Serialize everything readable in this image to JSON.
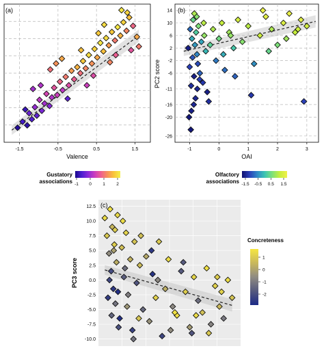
{
  "panels": [
    {
      "id": "a",
      "panel_label": "(a)",
      "xlabel": "Valence",
      "ylabel": "",
      "xlim": [
        -1.9,
        1.9
      ],
      "ylim": [
        -1.4,
        4.3
      ],
      "xticks": [
        -1.5,
        -0.5,
        0.5,
        1.5
      ],
      "xtick_labels": [
        "-1.5",
        "-0.5",
        "0.5",
        "1.5"
      ],
      "trend": {
        "x1": -1.7,
        "y1": -0.9,
        "x2": 1.6,
        "y2": 3.0
      }
    },
    {
      "id": "b",
      "panel_label": "(b)",
      "xlabel": "OAI",
      "ylabel": "PC2 score",
      "xlim": [
        -1.5,
        3.4
      ],
      "ylim": [
        -28,
        16
      ],
      "xticks": [
        -1,
        0,
        1,
        2,
        3
      ],
      "xtick_labels": [
        "-1",
        "0",
        "1",
        "2",
        "3"
      ],
      "yticks": [
        14,
        10,
        6,
        2,
        -2,
        -6,
        -11,
        -16,
        -20,
        -26
      ],
      "ytick_labels": [
        "14",
        "10",
        "6",
        "2",
        "-2",
        "-6",
        "-11",
        "-16",
        "-20",
        "-26"
      ],
      "trend": {
        "x1": -1.2,
        "y1": 1.0,
        "x2": 3.3,
        "y2": 10.5
      }
    },
    {
      "id": "c",
      "panel_label": "(c)",
      "xlabel": "",
      "ylabel": "PC3 score",
      "xlim": [
        -3.1,
        3.6
      ],
      "ylim": [
        -11.2,
        13.6
      ],
      "xticks": [],
      "xtick_labels": [],
      "yticks": [
        12.5,
        10.0,
        7.5,
        5.0,
        2.5,
        0.0,
        -2.5,
        -5.0,
        -7.5,
        -10.0
      ],
      "ytick_labels": [
        "12.5",
        "10.0",
        "7.5",
        "5.0",
        "2.5",
        "0.0",
        "-2.5",
        "-5.0",
        "-7.5",
        "-10.0"
      ],
      "trend": {
        "x1": -2.8,
        "y1": 1.7,
        "x2": 3.2,
        "y2": -4.3
      }
    }
  ],
  "legends": {
    "gustatory": {
      "title_line1": "Gustatory",
      "title_line2": "associations",
      "tick_labels": [
        "-1",
        "0",
        "1",
        "2"
      ],
      "colors": [
        "#1a0a8c",
        "#4b1ed0",
        "#8a2ad8",
        "#c93cbf",
        "#ee5f8f",
        "#f7905a",
        "#f9c53a",
        "#f4f04a"
      ]
    },
    "olfactory": {
      "title_line1": "Olfactory",
      "title_line2": "associations",
      "tick_labels": [
        "-1.5",
        "-0.5",
        "0.5",
        "1.5"
      ],
      "colors": [
        "#101070",
        "#2a3fb8",
        "#2f86c6",
        "#3bc3b4",
        "#7de07a",
        "#c6ee3d",
        "#f0f04a"
      ]
    },
    "concreteness": {
      "title": "Concreteness",
      "tick_labels": [
        "1",
        "0",
        "-1",
        "-2"
      ],
      "colors": [
        "#f5e642",
        "#c9b85c",
        "#8f8b82",
        "#55597e",
        "#1c2a86"
      ]
    }
  },
  "chart_data": [
    {
      "type": "scatter",
      "panel": "a",
      "xlabel": "Valence",
      "color_variable": "Gustatory associations",
      "x": [
        -1.55,
        -1.42,
        -1.3,
        -1.25,
        -1.18,
        -1.1,
        -1.05,
        -0.98,
        -0.92,
        -0.85,
        -0.8,
        -0.72,
        -0.66,
        -0.6,
        -0.52,
        -0.45,
        -0.38,
        -0.3,
        -0.22,
        -0.15,
        -0.08,
        0.0,
        0.08,
        0.15,
        0.22,
        0.3,
        0.38,
        0.45,
        0.52,
        0.6,
        0.68,
        0.75,
        0.82,
        0.9,
        0.98,
        1.05,
        1.12,
        1.2,
        1.28,
        1.35,
        1.45,
        1.55,
        -1.35,
        -0.95,
        -0.55,
        -0.25,
        0.1,
        0.42,
        0.7,
        1.0,
        1.3,
        1.6,
        -0.7,
        0.25,
        0.85,
        1.15,
        -1.15,
        -0.4,
        0.55,
        1.4
      ],
      "y": [
        -0.8,
        -0.55,
        -0.7,
        -0.2,
        -0.45,
        0.05,
        -0.3,
        0.35,
        -0.1,
        0.2,
        0.6,
        0.1,
        0.45,
        0.85,
        0.55,
        1.1,
        0.75,
        1.3,
        0.95,
        1.55,
        1.2,
        1.7,
        1.45,
        1.95,
        1.65,
        2.2,
        1.85,
        2.45,
        2.1,
        2.7,
        2.35,
        2.9,
        2.6,
        3.15,
        2.8,
        3.35,
        3.0,
        3.55,
        3.2,
        3.75,
        3.4,
        2.95,
        -0.05,
        0.95,
        1.85,
        0.4,
        2.4,
        1.35,
        3.45,
        2.2,
        3.95,
        2.55,
        1.6,
        0.95,
        1.9,
        4.05,
        0.8,
        2.05,
        3.1,
        2.4
      ],
      "values": [
        -0.9,
        -0.6,
        -0.8,
        -0.3,
        -0.5,
        0.0,
        -0.4,
        0.3,
        -0.2,
        0.1,
        0.5,
        -0.1,
        0.2,
        0.7,
        0.4,
        0.9,
        0.3,
        1.1,
        0.6,
        1.4,
        0.8,
        1.6,
        1.0,
        1.8,
        1.2,
        2.0,
        1.3,
        1.9,
        1.5,
        2.1,
        1.7,
        2.0,
        1.4,
        1.8,
        1.1,
        2.1,
        1.6,
        1.9,
        1.2,
        1.7,
        0.9,
        1.5,
        -0.7,
        0.2,
        1.3,
        -0.4,
        1.7,
        0.6,
        2.0,
        0.8,
        1.9,
        1.1,
        1.0,
        0.4,
        1.2,
        2.1,
        0.1,
        1.5,
        1.8,
        0.7
      ]
    },
    {
      "type": "scatter",
      "panel": "b",
      "xlabel": "OAI",
      "ylabel": "PC2 score",
      "color_variable": "Olfactory associations",
      "x": [
        -1.05,
        -1.0,
        -0.98,
        -0.95,
        -0.92,
        -0.9,
        -0.88,
        -0.85,
        -0.82,
        -0.8,
        -0.78,
        -0.75,
        -0.72,
        -0.7,
        -0.65,
        -0.6,
        -0.55,
        -0.5,
        -0.45,
        -0.4,
        -0.3,
        -0.2,
        -0.1,
        0.0,
        0.1,
        0.2,
        0.35,
        0.5,
        0.65,
        0.8,
        1.0,
        1.2,
        1.4,
        1.6,
        1.8,
        2.0,
        2.2,
        2.4,
        2.6,
        2.8,
        3.0,
        -1.02,
        -0.96,
        -0.86,
        -0.76,
        -0.66,
        -0.52,
        -0.35,
        0.15,
        0.55,
        1.1,
        1.7,
        2.3,
        2.9,
        -0.94,
        -0.84,
        -0.74,
        0.4,
        1.5,
        2.7
      ],
      "y": [
        2.0,
        -4.0,
        8.0,
        -10.0,
        5.0,
        -1.0,
        11.0,
        -7.0,
        3.0,
        -14.0,
        7.0,
        0.0,
        -3.0,
        9.0,
        -6.0,
        4.0,
        -9.0,
        6.0,
        1.0,
        -12.0,
        3.0,
        8.0,
        -2.0,
        5.0,
        10.0,
        -5.0,
        7.0,
        2.0,
        11.0,
        4.0,
        9.0,
        -3.0,
        6.0,
        12.0,
        8.0,
        3.0,
        10.0,
        13.0,
        7.0,
        11.0,
        9.0,
        -20.0,
        -24.0,
        -16.0,
        12.0,
        -8.0,
        10.0,
        -15.0,
        0.0,
        -7.0,
        -13.0,
        1.0,
        5.0,
        -15.0,
        -18.0,
        13.0,
        -11.0,
        6.0,
        14.0,
        8.0
      ],
      "values": [
        -1.6,
        -1.2,
        -0.8,
        -1.4,
        -0.2,
        -1.0,
        0.4,
        -1.6,
        -0.4,
        -1.5,
        0.2,
        -0.6,
        -1.1,
        0.6,
        -0.9,
        -0.3,
        -1.3,
        0.8,
        -0.1,
        -1.6,
        0.3,
        1.0,
        -0.7,
        0.5,
        1.2,
        -0.8,
        0.9,
        0.1,
        1.4,
        0.7,
        1.1,
        -0.5,
        1.3,
        1.6,
        1.0,
        0.6,
        1.5,
        1.7,
        1.2,
        1.6,
        1.4,
        -1.7,
        -1.7,
        -1.5,
        0.7,
        -1.2,
        1.1,
        -1.4,
        -0.2,
        -0.9,
        -1.3,
        0.4,
        0.9,
        -1.2,
        -1.6,
        1.0,
        -1.5,
        0.8,
        1.7,
        1.3
      ]
    },
    {
      "type": "scatter",
      "panel": "c",
      "ylabel": "PC3 score",
      "color_variable": "Concreteness",
      "x": [
        -2.8,
        -2.7,
        -2.6,
        -2.55,
        -2.5,
        -2.45,
        -2.4,
        -2.35,
        -2.3,
        -2.25,
        -2.2,
        -2.1,
        -2.0,
        -1.9,
        -1.8,
        -1.7,
        -1.6,
        -1.5,
        -1.4,
        -1.3,
        -1.15,
        -1.0,
        -0.85,
        -0.7,
        -0.55,
        -0.4,
        -0.25,
        -0.1,
        0.05,
        0.2,
        0.4,
        0.6,
        0.8,
        1.0,
        1.2,
        1.4,
        1.6,
        1.8,
        2.0,
        2.2,
        2.4,
        2.6,
        2.8,
        3.0,
        3.2,
        -2.65,
        -2.48,
        -2.32,
        -2.15,
        -1.95,
        -1.75,
        -1.45,
        -1.1,
        -0.6,
        0.3,
        0.9,
        1.5,
        2.1,
        2.7,
        -2.58,
        -2.38,
        -2.18,
        -1.85,
        -1.2,
        -0.3,
        0.5,
        1.3,
        2.5
      ],
      "y": [
        10.5,
        7.5,
        4.5,
        12.0,
        1.5,
        9.0,
        -1.5,
        6.0,
        -4.0,
        3.0,
        11.0,
        -6.5,
        5.5,
        0.5,
        8.0,
        -2.5,
        3.5,
        -8.5,
        6.5,
        -0.5,
        2.5,
        -5.0,
        4.0,
        -7.0,
        1.0,
        -3.0,
        6.5,
        -9.5,
        -1.5,
        3.5,
        -4.5,
        -6.0,
        1.5,
        -2.0,
        -8.0,
        0.5,
        -3.5,
        -5.5,
        2.0,
        -7.5,
        -1.0,
        -4.5,
        -6.5,
        0.0,
        -3.0,
        -3.0,
        -6.0,
        8.5,
        -8.0,
        10.0,
        -4.5,
        -10.0,
        7.5,
        5.0,
        -8.5,
        3.0,
        -6.0,
        -9.0,
        -2.0,
        0.0,
        5.0,
        -2.0,
        2.0,
        -6.5,
        0.0,
        -5.5,
        -9.0,
        0.5
      ],
      "values": [
        1.2,
        0.8,
        -0.5,
        1.3,
        -1.8,
        0.4,
        -2.2,
        0.9,
        -1.0,
        0.2,
        1.1,
        -2.4,
        0.6,
        -1.4,
        1.0,
        -0.8,
        0.3,
        -2.0,
        0.7,
        -1.6,
        0.5,
        -1.2,
        0.1,
        -0.4,
        -2.3,
        1.0,
        0.8,
        -1.9,
        0.2,
        1.2,
        -0.6,
        1.3,
        -1.5,
        0.9,
        -0.2,
        1.1,
        -1.1,
        0.6,
        1.3,
        -0.7,
        1.0,
        0.4,
        -0.9,
        1.2,
        0.7,
        -2.1,
        -1.3,
        0.9,
        -1.7,
        1.2,
        -0.3,
        -1.0,
        0.6,
        -2.2,
        -0.5,
        -1.5,
        1.2,
        0.8,
        1.0,
        -1.9,
        -0.1,
        -2.4,
        -1.1,
        0.7,
        -0.6,
        1.3,
        -1.6,
        0.9
      ]
    }
  ]
}
